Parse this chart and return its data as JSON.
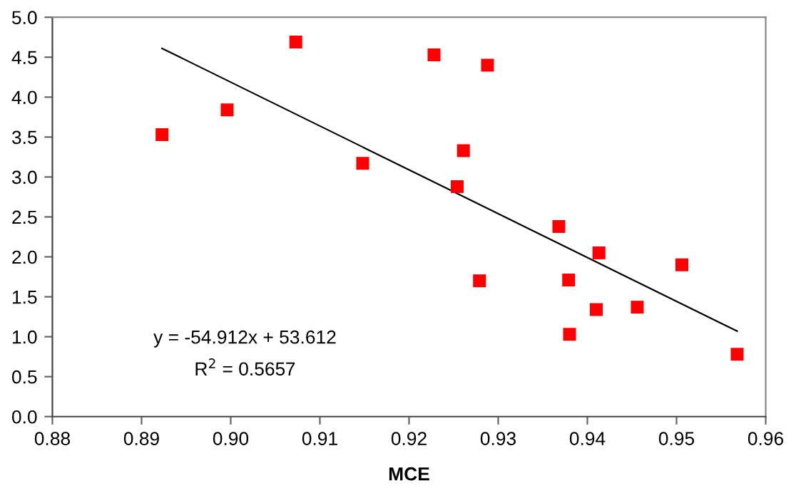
{
  "chart_data": {
    "type": "scatter",
    "xlabel": "MCE",
    "marker": "square",
    "grid": false,
    "legend": false,
    "xlim": [
      0.88,
      0.96
    ],
    "xticks": [
      {
        "value": 0.88,
        "label": "0.88"
      },
      {
        "value": 0.89,
        "label": "0.89"
      },
      {
        "value": 0.9,
        "label": "0.90"
      },
      {
        "value": 0.91,
        "label": "0.91"
      },
      {
        "value": 0.92,
        "label": "0.92"
      },
      {
        "value": 0.93,
        "label": "0.93"
      },
      {
        "value": 0.94,
        "label": "0.94"
      },
      {
        "value": 0.95,
        "label": "0.95"
      },
      {
        "value": 0.96,
        "label": "0.96"
      }
    ],
    "ylim": [
      0,
      5
    ],
    "yticks": [
      {
        "value": 0,
        "label": "0.0"
      },
      {
        "value": 0.5,
        "label": "0.5"
      },
      {
        "value": 1,
        "label": "1.0"
      },
      {
        "value": 1.5,
        "label": "1.5"
      },
      {
        "value": 2,
        "label": "2.0"
      },
      {
        "value": 2.5,
        "label": "2.5"
      },
      {
        "value": 3,
        "label": "3.0"
      },
      {
        "value": 3.5,
        "label": "3.5"
      },
      {
        "value": 4,
        "label": "4.0"
      },
      {
        "value": 4.5,
        "label": "4.5"
      },
      {
        "value": 5,
        "label": "5.0"
      }
    ],
    "series": [
      {
        "color": "#ff0000",
        "x": [
          0.8923,
          0.8996,
          0.9073,
          0.9148,
          0.9228,
          0.9288,
          0.9261,
          0.9254,
          0.9279,
          0.9368,
          0.9413,
          0.9379,
          0.941,
          0.9456,
          0.938,
          0.9506,
          0.9568
        ],
        "values": [
          3.53,
          3.84,
          4.69,
          3.17,
          4.53,
          4.4,
          3.33,
          2.88,
          1.7,
          2.38,
          2.05,
          1.71,
          1.34,
          1.37,
          1.03,
          1.9,
          0.78
        ]
      },
      {
        "type": "line",
        "color": "#000000",
        "marker": "none",
        "x": [
          0.8923,
          0.9568
        ],
        "values": [
          4.61,
          1.07
        ]
      }
    ],
    "annotations": [
      "y = -54.912x + 53.612",
      "R$^{2}$ = 0.5657"
    ]
  }
}
